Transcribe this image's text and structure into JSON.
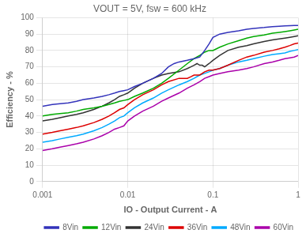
{
  "chart_data": {
    "type": "line",
    "title": "VOUT = 5V, fsw = 600 kHz",
    "x_label": "IO - Output Current - A",
    "y_label": "Efficiency - %",
    "log": "x",
    "xlim": [
      0.001,
      1
    ],
    "xticks": [
      0.001,
      0.01,
      0.1,
      1
    ],
    "ylim": [
      0,
      100
    ],
    "yticks": [
      0,
      10,
      20,
      30,
      40,
      50,
      60,
      70,
      80,
      90,
      100
    ],
    "grid": true,
    "legend": "lower right",
    "series": [
      {
        "name": "8Vin",
        "color": "#3333bb",
        "x": [
          0.001,
          0.0013,
          0.0016,
          0.002,
          0.0025,
          0.003,
          0.004,
          0.005,
          0.006,
          0.007,
          0.008,
          0.009,
          0.01,
          0.012,
          0.015,
          0.02,
          0.025,
          0.03,
          0.035,
          0.04,
          0.05,
          0.06,
          0.07,
          0.08,
          0.09,
          0.1,
          0.12,
          0.15,
          0.2,
          0.25,
          0.3,
          0.4,
          0.5,
          0.6,
          0.7,
          0.8,
          0.9,
          1.0
        ],
        "values": [
          46,
          47,
          47.5,
          48,
          49,
          50,
          51,
          52,
          53,
          54,
          55,
          55.5,
          56,
          58,
          60,
          63,
          66,
          70,
          72,
          73,
          74,
          75,
          76,
          80,
          84,
          88,
          90,
          91,
          92,
          93,
          93.5,
          94,
          94.5,
          94.8,
          95,
          95.1,
          95.2,
          95.3
        ]
      },
      {
        "name": "12Vin",
        "color": "#00aa00",
        "x": [
          0.001,
          0.0013,
          0.0016,
          0.002,
          0.0025,
          0.003,
          0.004,
          0.005,
          0.006,
          0.007,
          0.008,
          0.009,
          0.01,
          0.012,
          0.015,
          0.02,
          0.025,
          0.03,
          0.04,
          0.05,
          0.06,
          0.07,
          0.08,
          0.09,
          0.1,
          0.12,
          0.15,
          0.2,
          0.25,
          0.3,
          0.4,
          0.5,
          0.6,
          0.7,
          0.8,
          0.9,
          1.0
        ],
        "values": [
          40,
          41,
          41.5,
          42,
          43,
          44,
          45,
          46,
          47,
          48,
          49,
          49.5,
          50,
          52,
          54,
          57,
          60,
          63,
          68,
          72,
          75,
          77,
          79,
          80,
          80,
          82,
          84,
          86,
          87.5,
          88.5,
          89.5,
          90.5,
          91,
          91.5,
          92,
          92.5,
          93
        ]
      },
      {
        "name": "24Vin",
        "color": "#333333",
        "x": [
          0.001,
          0.0013,
          0.0016,
          0.002,
          0.0025,
          0.003,
          0.004,
          0.005,
          0.006,
          0.007,
          0.008,
          0.009,
          0.01,
          0.012,
          0.015,
          0.02,
          0.025,
          0.03,
          0.04,
          0.05,
          0.055,
          0.06,
          0.065,
          0.07,
          0.075,
          0.08,
          0.09,
          0.1,
          0.12,
          0.15,
          0.2,
          0.25,
          0.3,
          0.4,
          0.5,
          0.6,
          0.7,
          0.8,
          0.9,
          1.0
        ],
        "values": [
          37,
          38,
          39,
          40,
          41,
          42,
          44,
          46,
          48,
          50,
          52,
          53,
          54,
          57,
          60,
          63,
          65,
          66,
          67,
          69,
          70,
          71,
          72,
          71,
          71,
          70,
          72,
          74,
          77,
          80,
          82,
          83,
          84,
          85.5,
          86.5,
          87,
          87.5,
          88,
          88.5,
          89
        ]
      },
      {
        "name": "36Vin",
        "color": "#dd0000",
        "x": [
          0.001,
          0.0013,
          0.0016,
          0.002,
          0.0025,
          0.003,
          0.004,
          0.005,
          0.006,
          0.007,
          0.008,
          0.009,
          0.01,
          0.012,
          0.015,
          0.02,
          0.025,
          0.03,
          0.04,
          0.05,
          0.055,
          0.06,
          0.065,
          0.07,
          0.08,
          0.09,
          0.1,
          0.12,
          0.15,
          0.2,
          0.25,
          0.3,
          0.4,
          0.5,
          0.6,
          0.7,
          0.8,
          0.9,
          1.0
        ],
        "values": [
          29,
          30,
          31,
          32,
          33,
          34,
          36,
          38,
          40,
          42,
          44,
          45,
          47,
          50,
          53,
          56,
          59,
          61,
          63,
          63,
          64,
          65,
          65,
          65,
          67,
          68,
          68,
          69,
          71,
          74,
          76,
          77,
          79,
          80,
          81,
          82,
          83,
          84,
          84.5
        ]
      },
      {
        "name": "48Vin",
        "color": "#00aaff",
        "x": [
          0.001,
          0.0013,
          0.0016,
          0.002,
          0.0025,
          0.003,
          0.004,
          0.005,
          0.006,
          0.007,
          0.008,
          0.009,
          0.01,
          0.012,
          0.015,
          0.02,
          0.025,
          0.03,
          0.04,
          0.05,
          0.06,
          0.07,
          0.08,
          0.09,
          0.1,
          0.12,
          0.15,
          0.2,
          0.25,
          0.3,
          0.4,
          0.5,
          0.6,
          0.7,
          0.8,
          0.9,
          1.0
        ],
        "values": [
          24,
          25,
          26,
          27,
          28,
          29,
          31,
          33,
          35,
          37,
          39,
          40,
          42,
          45,
          48,
          51,
          54,
          56,
          59,
          61,
          63,
          65,
          66,
          67,
          68,
          69,
          71,
          73,
          74,
          75,
          76.5,
          77.5,
          78,
          78.5,
          79.5,
          80,
          80.5
        ]
      },
      {
        "name": "60Vin",
        "color": "#aa00aa",
        "x": [
          0.001,
          0.0013,
          0.0016,
          0.002,
          0.0025,
          0.003,
          0.004,
          0.005,
          0.006,
          0.007,
          0.008,
          0.009,
          0.01,
          0.012,
          0.015,
          0.02,
          0.025,
          0.03,
          0.04,
          0.05,
          0.06,
          0.07,
          0.08,
          0.09,
          0.1,
          0.12,
          0.15,
          0.2,
          0.25,
          0.3,
          0.4,
          0.5,
          0.6,
          0.7,
          0.8,
          0.9,
          1.0
        ],
        "values": [
          19,
          20,
          21,
          22,
          23,
          24,
          26,
          28,
          30,
          32,
          33,
          34,
          37,
          40,
          43,
          46,
          49,
          51,
          54,
          57,
          59,
          61,
          63,
          64,
          65,
          66,
          67,
          68,
          69,
          70,
          72,
          73,
          74,
          75,
          75.5,
          76,
          77
        ]
      }
    ]
  }
}
